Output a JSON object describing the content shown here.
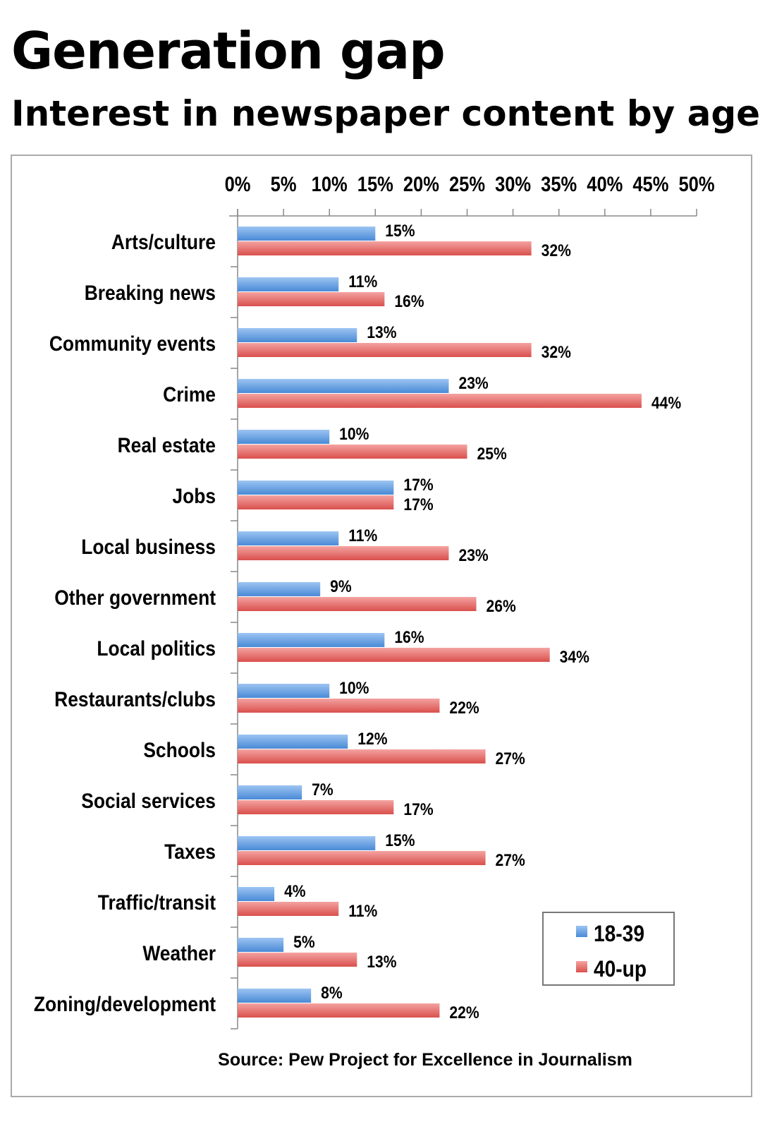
{
  "chart_data": {
    "type": "bar",
    "orientation": "horizontal",
    "title": "Generation gap",
    "subtitle": "Interest in newspaper content by age",
    "source": "Source: Pew Project for Excellence in Journalism",
    "xlim": [
      0,
      50
    ],
    "xticks": [
      "0%",
      "5%",
      "10%",
      "15%",
      "20%",
      "25%",
      "30%",
      "35%",
      "40%",
      "45%",
      "50%"
    ],
    "x_axis_position": "top",
    "grid": false,
    "legend_position": "bottom-right",
    "categories": [
      "Arts/culture",
      "Breaking news",
      "Community events",
      "Crime",
      "Real estate",
      "Jobs",
      "Local business",
      "Other government",
      "Local politics",
      "Restaurants/clubs",
      "Schools",
      "Social services",
      "Taxes",
      "Traffic/transit",
      "Weather",
      "Zoning/development"
    ],
    "series": [
      {
        "name": "18-39",
        "color": "#5b9be0",
        "values": [
          15,
          11,
          13,
          23,
          10,
          17,
          11,
          9,
          16,
          10,
          12,
          7,
          15,
          4,
          5,
          8
        ]
      },
      {
        "name": "40-up",
        "color": "#e0625f",
        "values": [
          32,
          16,
          32,
          44,
          25,
          17,
          23,
          26,
          34,
          22,
          27,
          17,
          27,
          11,
          13,
          22
        ]
      }
    ],
    "value_label_suffix": "%"
  }
}
